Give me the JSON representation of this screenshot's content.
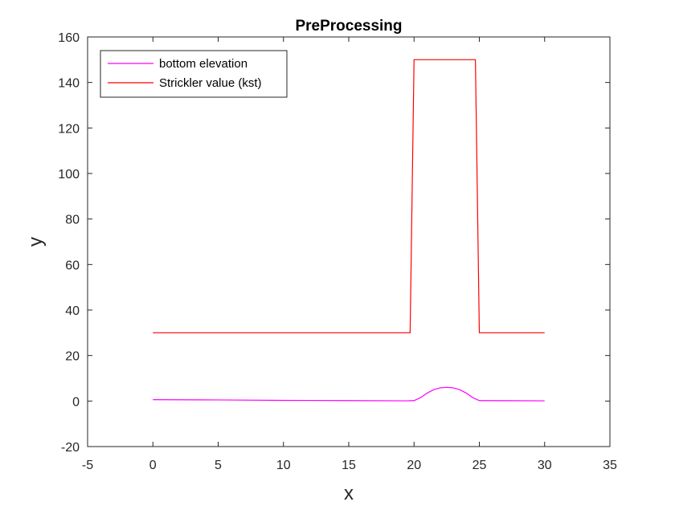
{
  "chart_data": {
    "type": "line",
    "title": "PreProcessing",
    "xlabel": "x",
    "ylabel": "y",
    "xlim": [
      -5,
      35
    ],
    "ylim": [
      -20,
      160
    ],
    "xticks": [
      -5,
      0,
      5,
      10,
      15,
      20,
      25,
      30,
      35
    ],
    "yticks": [
      -20,
      0,
      20,
      40,
      60,
      80,
      100,
      120,
      140,
      160
    ],
    "grid": false,
    "legend_position": "top-left",
    "series": [
      {
        "name": "bottom elevation",
        "color": "#ff00ff",
        "x": [
          0,
          5,
          10,
          15,
          19.5,
          20,
          20.5,
          21,
          21.5,
          22,
          22.5,
          23,
          23.5,
          24,
          24.5,
          25,
          30
        ],
        "y": [
          0.6,
          0.5,
          0.3,
          0.2,
          0.1,
          0.2,
          1.5,
          3.5,
          5.0,
          5.8,
          6.0,
          5.8,
          5.0,
          3.5,
          1.5,
          0.2,
          0.1
        ]
      },
      {
        "name": "Strickler value (kst)",
        "color": "#ff0000",
        "x": [
          0,
          19.7,
          20,
          24.7,
          25,
          30
        ],
        "y": [
          30,
          30,
          150,
          150,
          30,
          30
        ]
      }
    ]
  }
}
